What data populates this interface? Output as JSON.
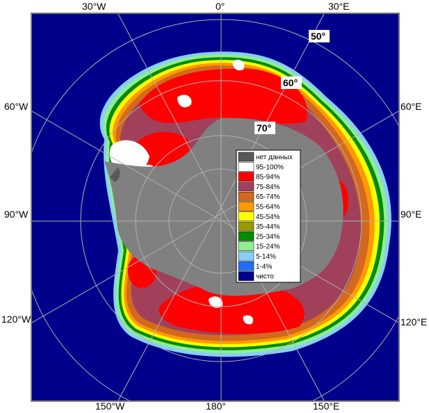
{
  "map": {
    "projection": "south polar stereographic",
    "ocean_color": "#00008b",
    "land_color": "#808080",
    "frame_color": "#808080",
    "longitude_labels": {
      "top": [
        "30°W",
        "0°",
        "30°E"
      ],
      "left": [
        "60°W",
        "90°W",
        "120°W"
      ],
      "right": [
        "60°E",
        "90°E",
        "120°E"
      ],
      "bottom": [
        "150°W",
        "180°",
        "150°E"
      ]
    },
    "latitude_labels": [
      "50°",
      "60°",
      "70°"
    ]
  },
  "legend": {
    "items": [
      {
        "label": "нет данных",
        "color": "#585858"
      },
      {
        "label": "95-100%",
        "color": "#ffffff"
      },
      {
        "label": "85-94%",
        "color": "#ff0000"
      },
      {
        "label": "75-84%",
        "color": "#a0405a"
      },
      {
        "label": "65-74%",
        "color": "#d2691e"
      },
      {
        "label": "55-64%",
        "color": "#ff9900"
      },
      {
        "label": "45-54%",
        "color": "#ffff00"
      },
      {
        "label": "35-44%",
        "color": "#9a9a00"
      },
      {
        "label": "25-34%",
        "color": "#008c00"
      },
      {
        "label": "15-24%",
        "color": "#90ee90"
      },
      {
        "label": "5-14%",
        "color": "#87cefa"
      },
      {
        "label": "1-4%",
        "color": "#1e6eff"
      },
      {
        "label": "чисто",
        "color": "#00008b"
      }
    ]
  }
}
